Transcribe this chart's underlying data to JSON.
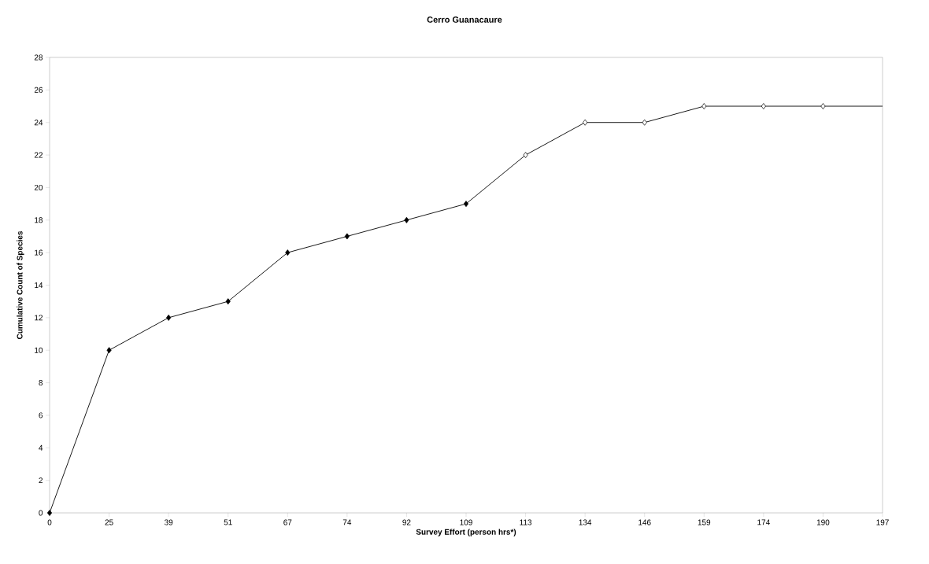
{
  "chart_data": {
    "type": "line",
    "title": "Cerro Guanacaure",
    "xlabel": "Survey Effort (person hrs*)",
    "ylabel": "Cumulative Count of Species",
    "categories": [
      "0",
      "25",
      "39",
      "51",
      "67",
      "74",
      "92",
      "109",
      "113",
      "134",
      "146",
      "159",
      "174",
      "190",
      "197"
    ],
    "series": [
      {
        "color": "#000000",
        "values": [
          0,
          10,
          12,
          13,
          16,
          17,
          18,
          19,
          22,
          24,
          24,
          25,
          25,
          25,
          25
        ],
        "colors": [
          "#000000",
          "#000000",
          "#000000",
          "#000000",
          "#000000",
          "#000000",
          "#000000",
          "#000000",
          "#ffffff",
          "#ffffff",
          "#ffffff",
          "#ffffff",
          "#ffffff",
          "#ffffff",
          null
        ]
      }
    ],
    "ylim": [
      0,
      28
    ],
    "yticks": [
      0,
      2,
      4,
      6,
      8,
      10,
      12,
      14,
      16,
      18,
      20,
      22,
      24,
      26,
      28
    ],
    "grid": false,
    "marker": "diamond",
    "line_style": "solid"
  }
}
